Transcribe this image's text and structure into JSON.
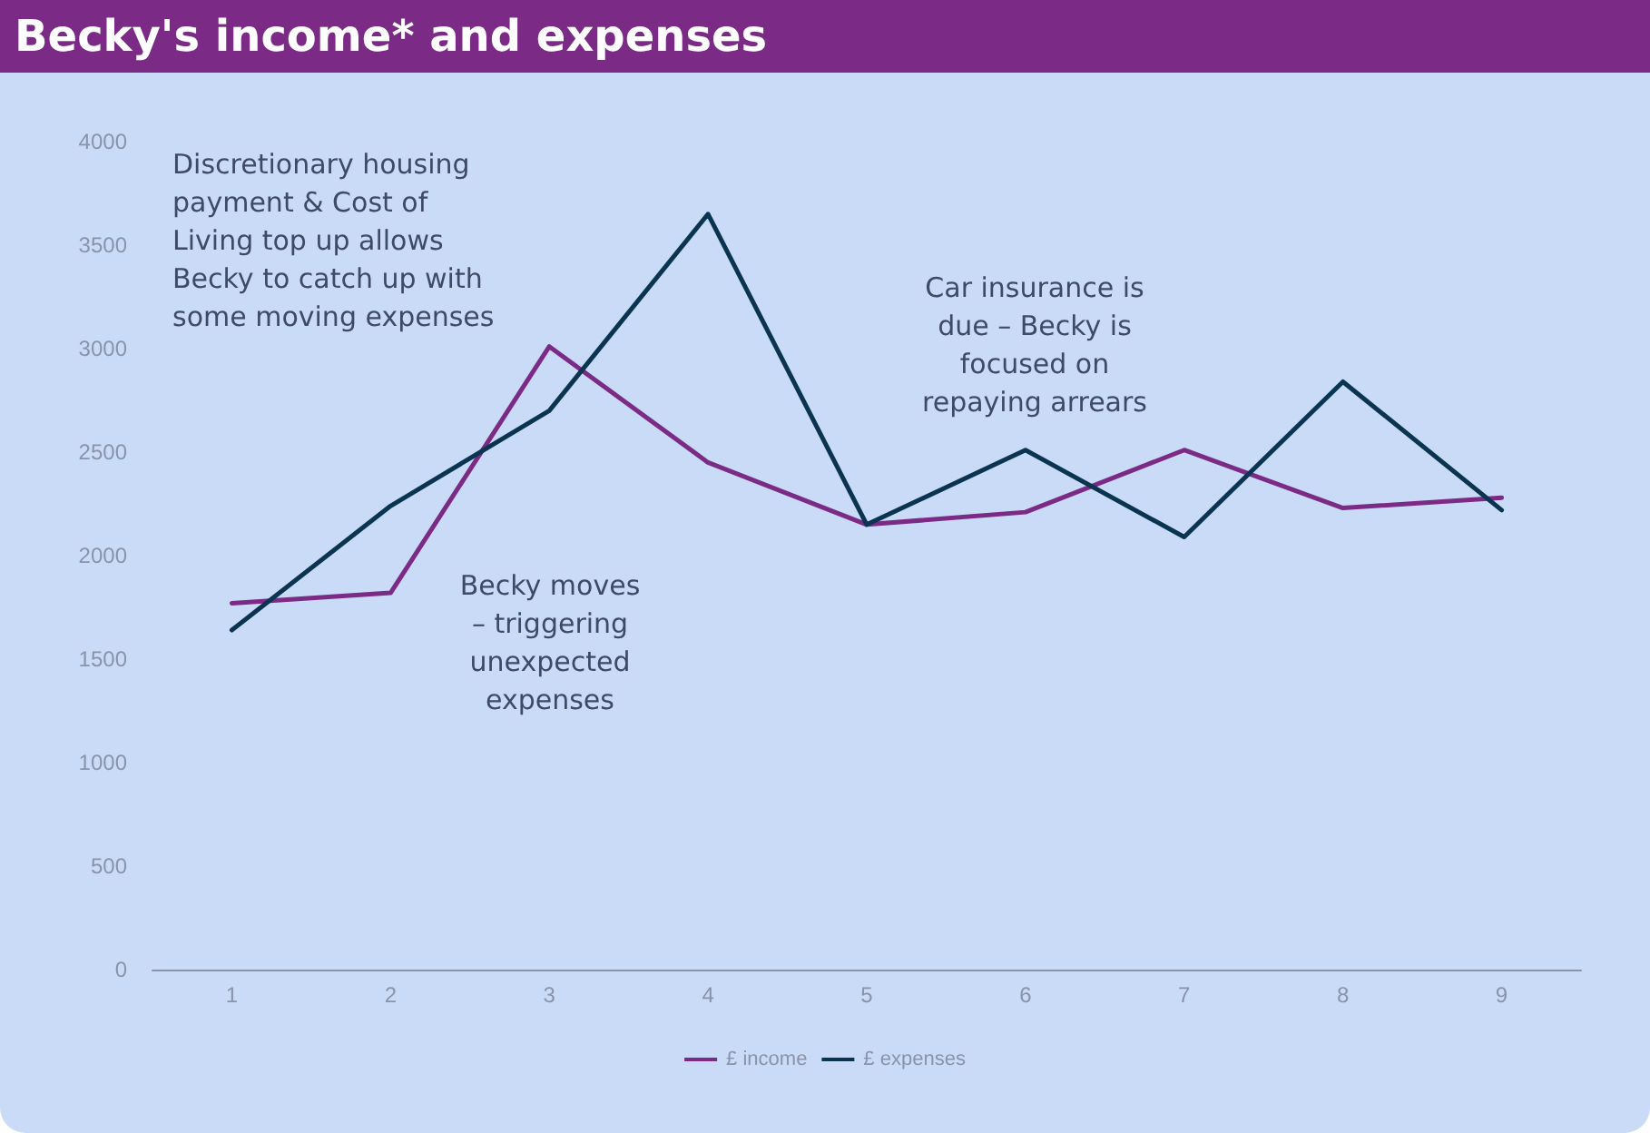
{
  "chart_data": {
    "type": "line",
    "title": "Becky's income* and expenses",
    "categories": [
      "1",
      "2",
      "3",
      "4",
      "5",
      "6",
      "7",
      "8",
      "9"
    ],
    "series": [
      {
        "name": "£ income",
        "color": "#7b2a85",
        "values": [
          1770,
          1820,
          3010,
          2450,
          2150,
          2210,
          2510,
          2230,
          2280
        ]
      },
      {
        "name": "£ expenses",
        "color": "#0b3450",
        "values": [
          1640,
          2240,
          2700,
          3650,
          2150,
          2510,
          2090,
          2840,
          2220
        ]
      }
    ],
    "ylim": [
      0,
      4000
    ],
    "yticks": [
      0,
      500,
      1000,
      1500,
      2000,
      2500,
      3000,
      3500,
      4000
    ],
    "grid": false,
    "legend": "bottom",
    "marker": "none",
    "line_style": "solid",
    "annotations": [
      "Discretionary housing\npayment & Cost of\nLiving top up allows\nBecky to catch up with\nsome moving expenses",
      "Becky moves\n– triggering\nunexpected\nexpenses",
      "Car insurance is\ndue – Becky is\nfocused on\nrepaying arrears"
    ]
  }
}
